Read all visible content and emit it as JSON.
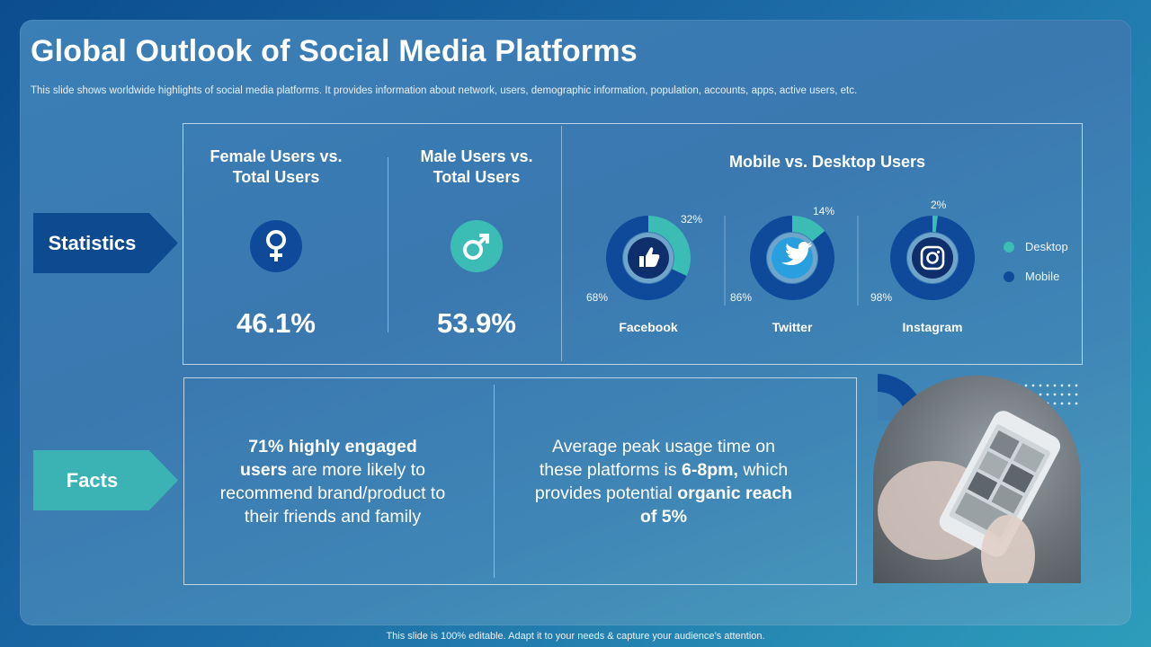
{
  "slide": {
    "title": "Global Outlook of Social Media Platforms",
    "subtitle": "This slide shows worldwide highlights of social media platforms. It provides information about network, users, demographic information, population, accounts, apps, active users, etc.",
    "footer": "This slide is 100% editable. Adapt it to your needs & capture your audience’s attention."
  },
  "statistics": {
    "label": "Statistics",
    "female": {
      "heading_line1": "Female Users vs.",
      "heading_line2": "Total Users",
      "value": "46.1%",
      "icon": "female-symbol-icon"
    },
    "male": {
      "heading_line1": "Male Users vs.",
      "heading_line2": "Total Users",
      "value": "53.9%",
      "icon": "male-symbol-icon"
    },
    "mobile_desktop": {
      "heading": "Mobile vs. Desktop Users",
      "legend": {
        "desktop": "Desktop",
        "mobile": "Mobile"
      },
      "colors": {
        "desktop": "#3bbdb6",
        "mobile": "#0e4a99"
      }
    }
  },
  "chart_data": {
    "type": "pie",
    "title": "Mobile vs. Desktop Users",
    "legend": [
      "Desktop",
      "Mobile"
    ],
    "legend_position": "right",
    "charts": [
      {
        "name": "Facebook",
        "icon": "thumbs-up-icon",
        "desktop": 32,
        "mobile": 68,
        "desktop_label": "32%",
        "mobile_label": "68%"
      },
      {
        "name": "Twitter",
        "icon": "twitter-bird-icon",
        "desktop": 14,
        "mobile": 86,
        "desktop_label": "14%",
        "mobile_label": "86%"
      },
      {
        "name": "Instagram",
        "icon": "instagram-icon",
        "desktop": 2,
        "mobile": 98,
        "desktop_label": "2%",
        "mobile_label": "98%"
      }
    ]
  },
  "facts": {
    "label": "Facts",
    "fact1": {
      "bold1": "71% highly engaged",
      "bold2": "users",
      "rest": " are more likely to recommend  brand/product to their friends and family"
    },
    "fact2": {
      "text1": "Average peak usage time on these platforms  is ",
      "bold1": "6-8pm,",
      "text2": " which provides potential ",
      "bold2": "organic reach of 5%"
    }
  }
}
